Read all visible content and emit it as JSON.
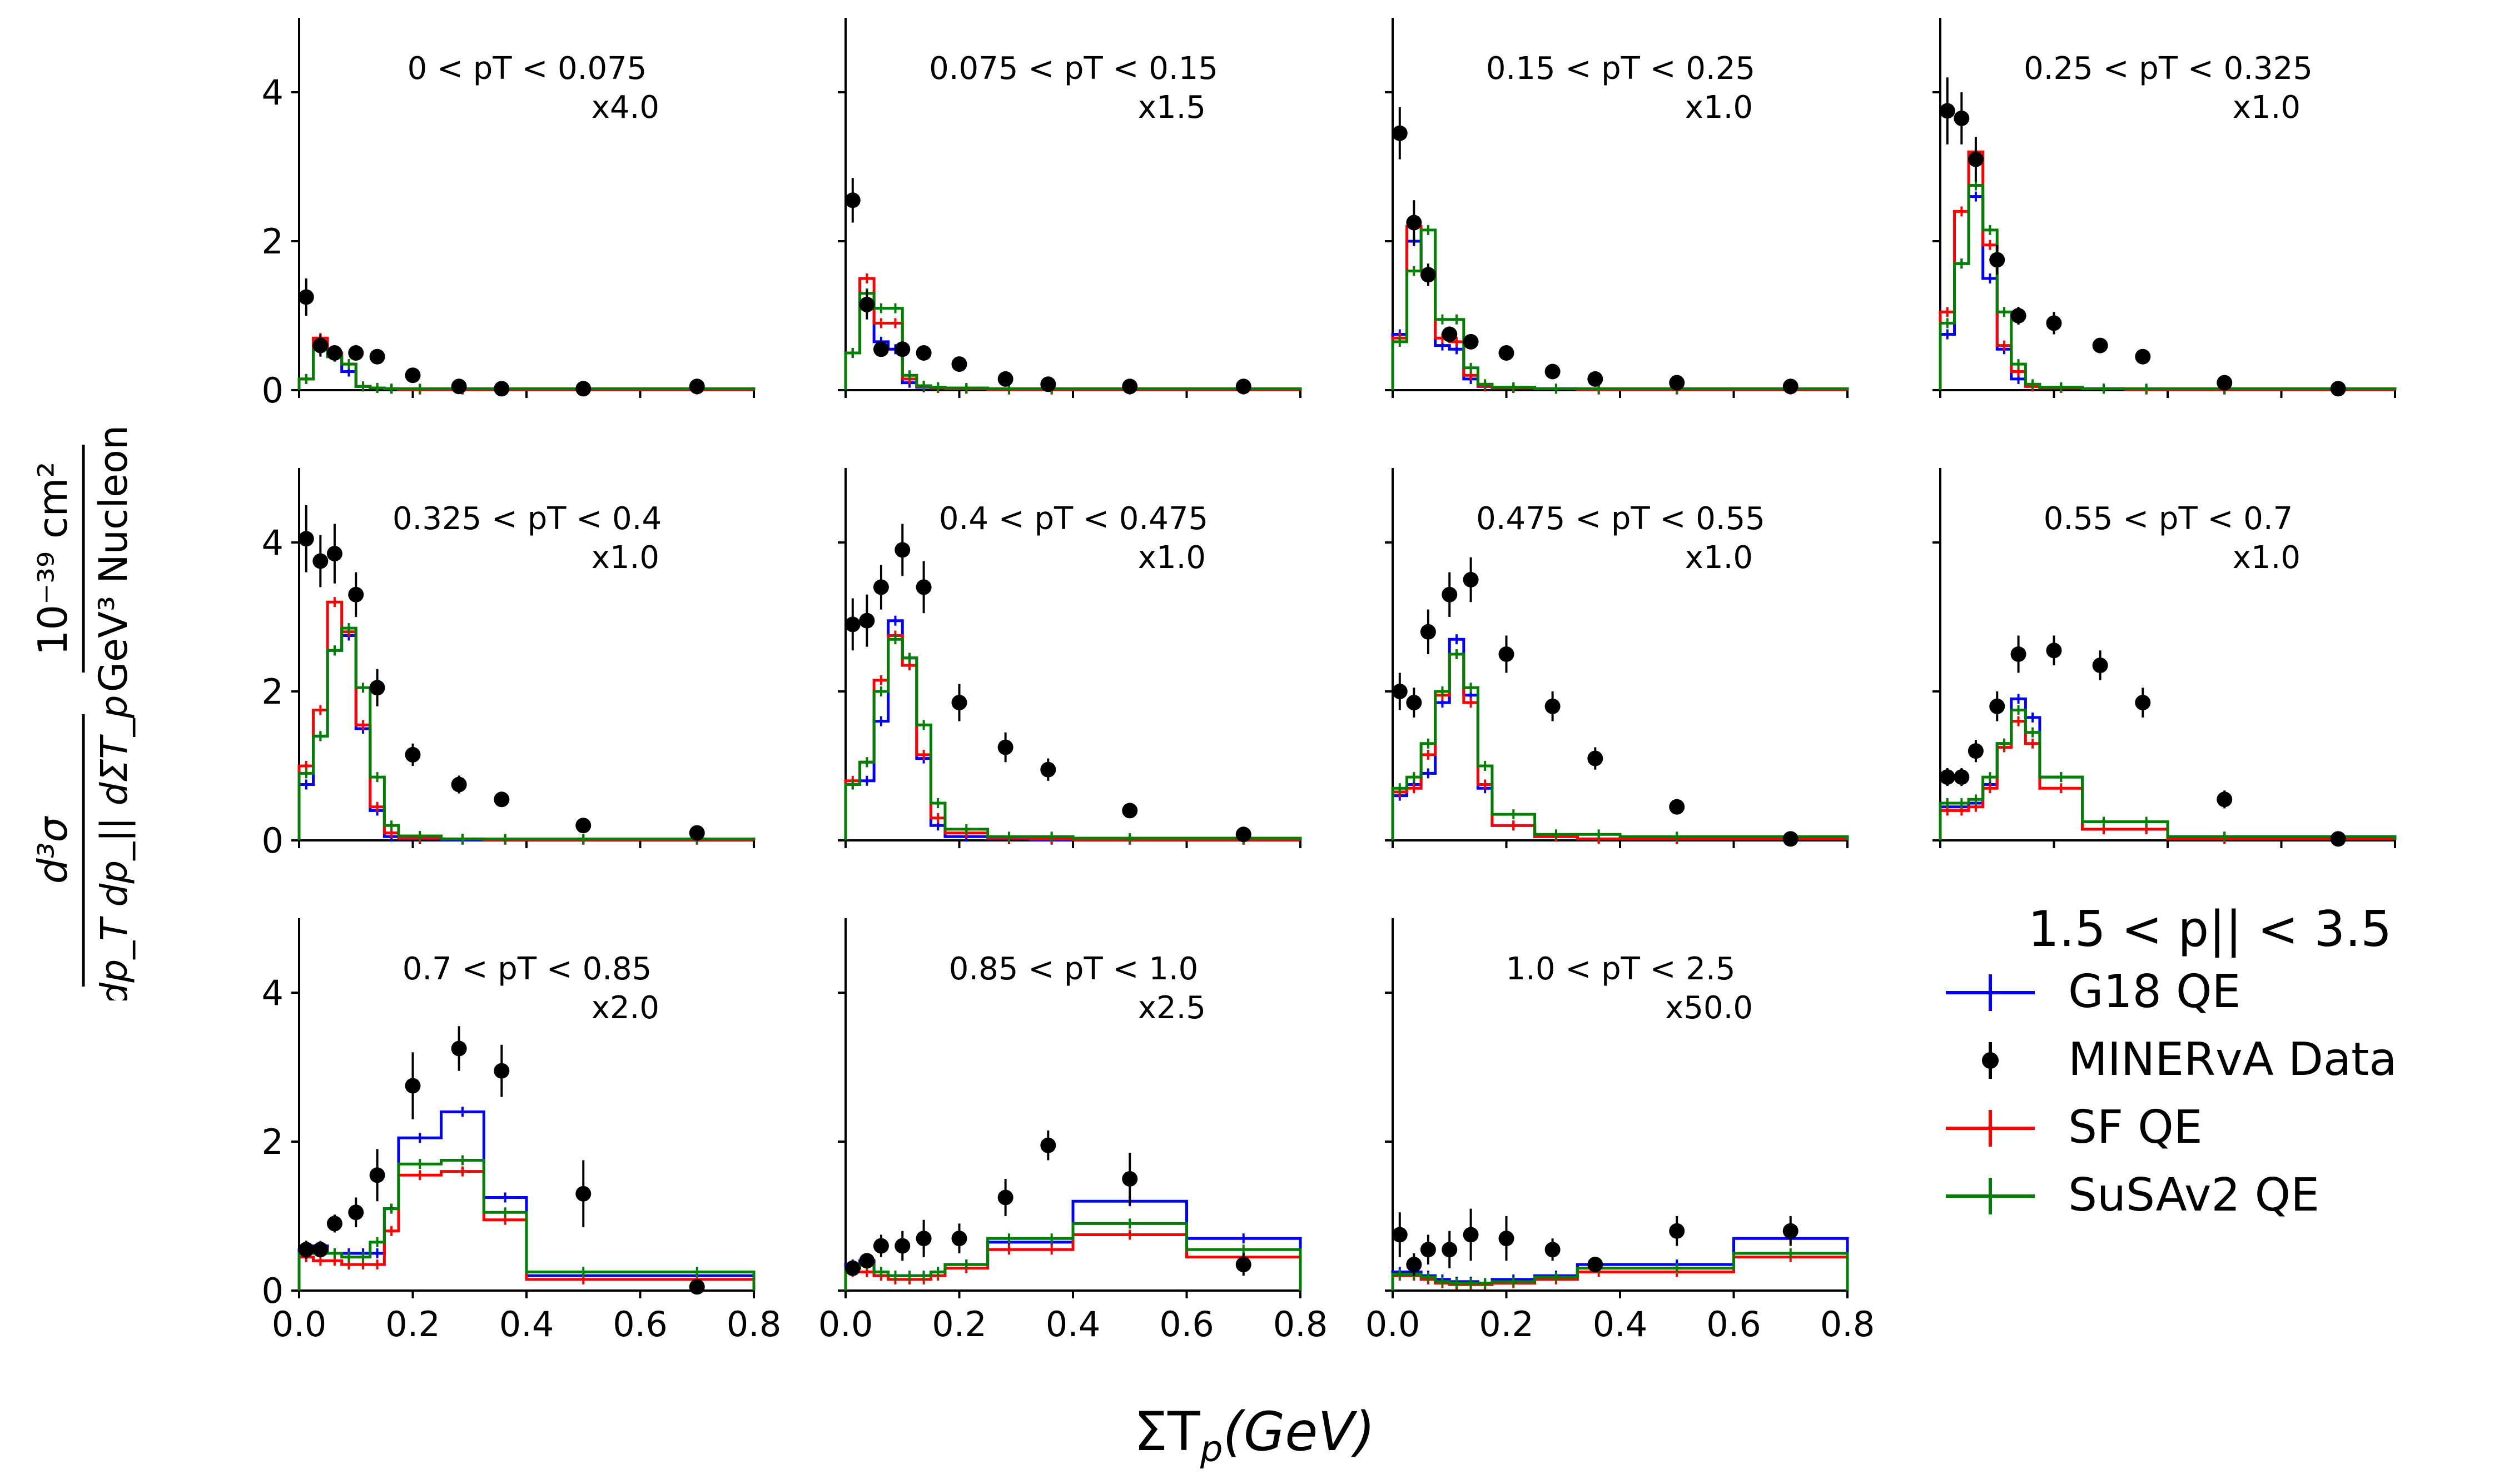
{
  "figure": {
    "xlabel_main": "ΣT",
    "xlabel_sub": "p",
    "xlabel_rest": "(GeV)",
    "ylabel": {
      "num_top": "d³σ",
      "num_bottom": "dp_T dp_|| dΣT_p",
      "den_top": "10⁻³⁹ cm²",
      "den_bottom": "GeV³ Nucleon"
    },
    "legend": {
      "title": "1.5 < p|| < 3.5",
      "entries": [
        {
          "label": "G18 QE",
          "color": "#0000ff",
          "marker": "errorbar"
        },
        {
          "label": "MINERvA Data",
          "color": "#000000",
          "marker": "dot"
        },
        {
          "label": "SF QE",
          "color": "#ff0000",
          "marker": "errorbar"
        },
        {
          "label": "SuSAv2 QE",
          "color": "#008000",
          "marker": "errorbar"
        }
      ]
    },
    "colors": {
      "g18": "#0000ff",
      "sf": "#ff0000",
      "susa": "#008000",
      "data": "#000000"
    }
  },
  "chart_data": {
    "type": "line",
    "bin_edges": [
      0,
      0.025,
      0.05,
      0.075,
      0.1,
      0.125,
      0.15,
      0.175,
      0.25,
      0.325,
      0.4,
      0.6,
      0.8
    ],
    "xlim": [
      0,
      0.8
    ],
    "ylim": [
      0,
      5
    ],
    "xticks": [
      "0.0",
      "0.2",
      "0.4",
      "0.6",
      "0.8"
    ],
    "yticks": [
      "0",
      "2",
      "4"
    ],
    "panels": [
      {
        "title": "0 < pT < 0.075",
        "scale": "x4.0",
        "g18": [
          0.15,
          0.6,
          0.45,
          0.25,
          0.05,
          0.03,
          0.02,
          0.01,
          0.01,
          0.01,
          0.01,
          0.01
        ],
        "sf": [
          0.15,
          0.7,
          0.5,
          0.35,
          0.05,
          0.03,
          0.02,
          0.01,
          0.01,
          0.01,
          0.01,
          0.01
        ],
        "susa": [
          0.15,
          0.55,
          0.45,
          0.35,
          0.05,
          0.03,
          0.02,
          0.02,
          0.02,
          0.02,
          0.02,
          0.02
        ],
        "data_x": [
          0.0125,
          0.0375,
          0.0625,
          0.1,
          0.1375,
          0.2,
          0.2813,
          0.3563,
          0.5,
          0.7
        ],
        "data_y": [
          1.25,
          0.6,
          0.5,
          0.5,
          0.45,
          0.2,
          0.05,
          0.02,
          0.02,
          0.05
        ],
        "data_err": [
          0.25,
          0.15,
          0.1,
          0.08,
          0.06,
          0.05,
          0.04,
          0.02,
          0.02,
          0.02
        ]
      },
      {
        "title": "0.075 < pT < 0.15",
        "scale": "x1.5",
        "g18": [
          0.5,
          1.1,
          0.65,
          0.55,
          0.1,
          0.04,
          0.03,
          0.02,
          0.01,
          0.01,
          0.01,
          0.01
        ],
        "sf": [
          0.5,
          1.5,
          0.9,
          0.9,
          0.15,
          0.05,
          0.03,
          0.02,
          0.01,
          0.01,
          0.01,
          0.01
        ],
        "susa": [
          0.5,
          1.3,
          1.1,
          1.1,
          0.2,
          0.06,
          0.04,
          0.03,
          0.02,
          0.02,
          0.02,
          0.02
        ],
        "data_x": [
          0.0125,
          0.0375,
          0.0625,
          0.1,
          0.1375,
          0.2,
          0.2813,
          0.3563,
          0.5,
          0.7
        ],
        "data_y": [
          2.55,
          1.15,
          0.55,
          0.55,
          0.5,
          0.35,
          0.15,
          0.08,
          0.05,
          0.05
        ],
        "data_err": [
          0.3,
          0.2,
          0.1,
          0.08,
          0.07,
          0.06,
          0.05,
          0.03,
          0.03,
          0.02
        ]
      },
      {
        "title": "0.15 < pT < 0.25",
        "scale": "x1.0",
        "g18": [
          0.75,
          2.0,
          1.6,
          0.6,
          0.55,
          0.15,
          0.05,
          0.03,
          0.02,
          0.01,
          0.01,
          0.01
        ],
        "sf": [
          0.7,
          2.2,
          1.6,
          0.7,
          0.65,
          0.2,
          0.06,
          0.03,
          0.02,
          0.01,
          0.01,
          0.01
        ],
        "susa": [
          0.65,
          1.6,
          2.15,
          0.95,
          0.95,
          0.3,
          0.08,
          0.04,
          0.02,
          0.02,
          0.02,
          0.02
        ],
        "data_x": [
          0.0125,
          0.0375,
          0.0625,
          0.1,
          0.1375,
          0.2,
          0.2813,
          0.3563,
          0.5,
          0.7
        ],
        "data_y": [
          3.45,
          2.25,
          1.55,
          0.75,
          0.65,
          0.5,
          0.25,
          0.15,
          0.1,
          0.05
        ],
        "data_err": [
          0.35,
          0.3,
          0.15,
          0.1,
          0.08,
          0.06,
          0.05,
          0.05,
          0.04,
          0.02
        ]
      },
      {
        "title": "0.25 < pT < 0.325",
        "scale": "x1.0",
        "g18": [
          0.75,
          1.7,
          2.6,
          1.5,
          0.55,
          0.15,
          0.05,
          0.03,
          0.02,
          0.01,
          0.01,
          0.01
        ],
        "sf": [
          1.05,
          2.4,
          3.2,
          1.95,
          0.6,
          0.25,
          0.05,
          0.03,
          0.02,
          0.01,
          0.01,
          0.01
        ],
        "susa": [
          0.9,
          1.7,
          2.75,
          2.15,
          1.05,
          0.35,
          0.08,
          0.04,
          0.02,
          0.02,
          0.02,
          0.02
        ],
        "data_x": [
          0.0125,
          0.0375,
          0.0625,
          0.1,
          0.1375,
          0.2,
          0.2813,
          0.3563,
          0.5,
          0.7
        ],
        "data_y": [
          3.75,
          3.65,
          3.1,
          1.75,
          1.0,
          0.9,
          0.6,
          0.45,
          0.1,
          0.02
        ],
        "data_err": [
          0.45,
          0.35,
          0.3,
          0.2,
          0.12,
          0.15,
          0.1,
          0.08,
          0.06,
          0.02
        ]
      },
      {
        "title": "0.325 < pT < 0.4",
        "scale": "x1.0",
        "g18": [
          0.75,
          1.4,
          2.55,
          2.75,
          1.5,
          0.4,
          0.05,
          0.02,
          0.01,
          0.01,
          0.01,
          0.01
        ],
        "sf": [
          1.0,
          1.75,
          3.2,
          2.8,
          1.55,
          0.45,
          0.1,
          0.03,
          0.02,
          0.01,
          0.01,
          0.01
        ],
        "susa": [
          0.9,
          1.4,
          2.55,
          2.85,
          2.05,
          0.85,
          0.2,
          0.06,
          0.02,
          0.02,
          0.02,
          0.02
        ],
        "data_x": [
          0.0125,
          0.0375,
          0.0625,
          0.1,
          0.1375,
          0.2,
          0.2813,
          0.3563,
          0.5,
          0.7
        ],
        "data_y": [
          4.05,
          3.75,
          3.85,
          3.3,
          2.05,
          1.15,
          0.75,
          0.55,
          0.2,
          0.1
        ],
        "data_err": [
          0.45,
          0.35,
          0.4,
          0.3,
          0.25,
          0.15,
          0.12,
          0.08,
          0.05,
          0.02
        ]
      },
      {
        "title": "0.4 < pT < 0.475",
        "scale": "x1.0",
        "g18": [
          0.75,
          0.8,
          1.6,
          2.95,
          2.45,
          1.1,
          0.2,
          0.05,
          0.02,
          0.01,
          0.01,
          0.01
        ],
        "sf": [
          0.8,
          1.05,
          2.15,
          2.75,
          2.35,
          1.15,
          0.3,
          0.1,
          0.03,
          0.02,
          0.01,
          0.01
        ],
        "susa": [
          0.75,
          1.05,
          2.0,
          2.7,
          2.45,
          1.55,
          0.5,
          0.15,
          0.05,
          0.05,
          0.03,
          0.03
        ],
        "data_x": [
          0.0125,
          0.0375,
          0.0625,
          0.1,
          0.1375,
          0.2,
          0.2813,
          0.3563,
          0.5,
          0.7
        ],
        "data_y": [
          2.9,
          2.95,
          3.4,
          3.9,
          3.4,
          1.85,
          1.25,
          0.95,
          0.4,
          0.08
        ],
        "data_err": [
          0.35,
          0.35,
          0.3,
          0.35,
          0.35,
          0.25,
          0.2,
          0.15,
          0.06,
          0.02
        ]
      },
      {
        "title": "0.475 < pT < 0.55",
        "scale": "x1.0",
        "g18": [
          0.6,
          0.75,
          0.9,
          1.85,
          2.7,
          1.95,
          0.7,
          0.2,
          0.05,
          0.02,
          0.02,
          0.02
        ],
        "sf": [
          0.65,
          0.7,
          1.15,
          1.95,
          2.5,
          1.85,
          0.75,
          0.2,
          0.05,
          0.02,
          0.02,
          0.02
        ],
        "susa": [
          0.7,
          0.85,
          1.3,
          2.0,
          2.5,
          2.05,
          1.0,
          0.35,
          0.08,
          0.08,
          0.05,
          0.05
        ],
        "data_x": [
          0.0125,
          0.0375,
          0.0625,
          0.1,
          0.1375,
          0.2,
          0.2813,
          0.3563,
          0.5,
          0.7
        ],
        "data_y": [
          2.0,
          1.85,
          2.8,
          3.3,
          3.5,
          2.5,
          1.8,
          1.1,
          0.45,
          0.02
        ],
        "data_err": [
          0.25,
          0.2,
          0.3,
          0.3,
          0.3,
          0.25,
          0.2,
          0.15,
          0.08,
          0.02
        ]
      },
      {
        "title": "0.55 < pT < 0.7",
        "scale": "x1.0",
        "g18": [
          0.45,
          0.45,
          0.5,
          0.75,
          1.3,
          1.9,
          1.65,
          0.85,
          0.15,
          0.15,
          0.05,
          0.05
        ],
        "sf": [
          0.4,
          0.4,
          0.45,
          0.7,
          1.25,
          1.6,
          1.3,
          0.7,
          0.15,
          0.15,
          0.02,
          0.02
        ],
        "susa": [
          0.5,
          0.5,
          0.55,
          0.85,
          1.3,
          1.75,
          1.45,
          0.85,
          0.25,
          0.25,
          0.05,
          0.05
        ],
        "data_x": [
          0.0125,
          0.0375,
          0.0625,
          0.1,
          0.1375,
          0.2,
          0.2813,
          0.3563,
          0.5,
          0.7
        ],
        "data_y": [
          0.85,
          0.85,
          1.2,
          1.8,
          2.5,
          2.55,
          2.35,
          1.85,
          0.55,
          0.02
        ],
        "data_err": [
          0.12,
          0.12,
          0.15,
          0.2,
          0.25,
          0.2,
          0.2,
          0.2,
          0.12,
          0.02
        ]
      },
      {
        "title": "0.7 < pT < 0.85",
        "scale": "x2.0",
        "g18": [
          0.55,
          0.6,
          0.5,
          0.5,
          0.5,
          0.5,
          1.1,
          2.05,
          2.4,
          1.25,
          0.2,
          0.2
        ],
        "sf": [
          0.45,
          0.4,
          0.4,
          0.35,
          0.35,
          0.35,
          0.8,
          1.55,
          1.6,
          0.95,
          0.15,
          0.15
        ],
        "susa": [
          0.5,
          0.55,
          0.5,
          0.45,
          0.45,
          0.65,
          1.1,
          1.7,
          1.75,
          1.05,
          0.25,
          0.25
        ],
        "data_x": [
          0.0125,
          0.0375,
          0.0625,
          0.1,
          0.1375,
          0.2,
          0.2813,
          0.3563,
          0.5,
          0.7
        ],
        "data_y": [
          0.55,
          0.55,
          0.9,
          1.05,
          1.55,
          2.75,
          3.25,
          2.95,
          1.3,
          0.05
        ],
        "data_err": [
          0.12,
          0.1,
          0.12,
          0.2,
          0.35,
          0.45,
          0.3,
          0.35,
          0.45,
          0.02
        ]
      },
      {
        "title": "0.85 < pT < 1.0",
        "scale": "x2.5",
        "g18": [
          0.35,
          0.4,
          0.2,
          0.2,
          0.2,
          0.2,
          0.25,
          0.35,
          0.65,
          0.65,
          1.2,
          0.7
        ],
        "sf": [
          0.25,
          0.25,
          0.2,
          0.15,
          0.15,
          0.15,
          0.2,
          0.3,
          0.55,
          0.55,
          0.75,
          0.45
        ],
        "susa": [
          0.3,
          0.35,
          0.25,
          0.2,
          0.2,
          0.2,
          0.25,
          0.35,
          0.7,
          0.7,
          0.9,
          0.55
        ],
        "data_x": [
          0.0125,
          0.0375,
          0.0625,
          0.1,
          0.1375,
          0.2,
          0.2813,
          0.3563,
          0.5,
          0.7
        ],
        "data_y": [
          0.3,
          0.4,
          0.6,
          0.6,
          0.7,
          0.7,
          1.25,
          1.95,
          1.5,
          0.35
        ],
        "data_err": [
          0.08,
          0.1,
          0.15,
          0.2,
          0.25,
          0.2,
          0.25,
          0.2,
          0.35,
          0.15
        ]
      },
      {
        "title": "1.0 < pT < 2.5",
        "scale": "x50.0",
        "g18": [
          0.25,
          0.25,
          0.2,
          0.15,
          0.12,
          0.12,
          0.1,
          0.15,
          0.2,
          0.35,
          0.35,
          0.7
        ],
        "sf": [
          0.2,
          0.2,
          0.15,
          0.1,
          0.08,
          0.08,
          0.08,
          0.1,
          0.15,
          0.25,
          0.25,
          0.45
        ],
        "susa": [
          0.22,
          0.22,
          0.18,
          0.12,
          0.1,
          0.1,
          0.1,
          0.12,
          0.18,
          0.3,
          0.3,
          0.5
        ],
        "data_x": [
          0.0125,
          0.0375,
          0.0625,
          0.1,
          0.1375,
          0.2,
          0.2813,
          0.3563,
          0.5,
          0.7
        ],
        "data_y": [
          0.75,
          0.35,
          0.55,
          0.55,
          0.75,
          0.7,
          0.55,
          0.35,
          0.8,
          0.8
        ],
        "data_err": [
          0.3,
          0.15,
          0.2,
          0.25,
          0.35,
          0.3,
          0.15,
          0.1,
          0.2,
          0.2
        ]
      }
    ]
  }
}
